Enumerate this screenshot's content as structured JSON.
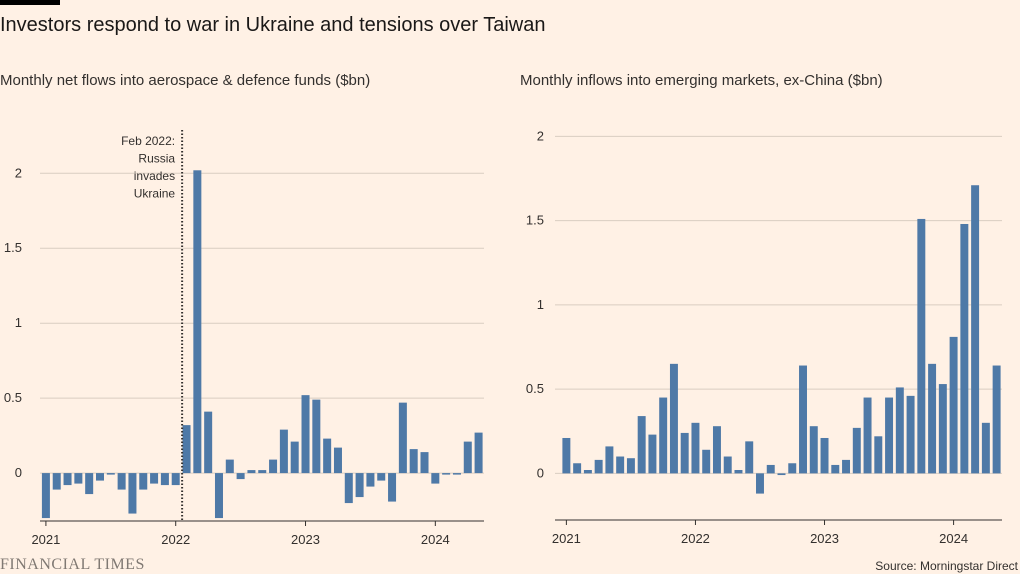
{
  "title": "Investors respond to war in Ukraine and tensions over Taiwan",
  "colors": {
    "bar": "#4e79a7",
    "grid": "#d9cdc1",
    "axis": "#33302e",
    "background": "#fff1e5"
  },
  "chart_data": [
    {
      "type": "bar",
      "title": "Monthly net flows into aerospace & defence funds ($bn)",
      "xlabel": "",
      "ylabel": "",
      "ylim": [
        -0.38,
        2.1
      ],
      "yticks": [
        0,
        0.5,
        1,
        1.5,
        2
      ],
      "ytick_labels": [
        "0",
        "0.5",
        "1",
        "1.5",
        "2"
      ],
      "xticks": [
        {
          "label": "2021",
          "index": 0
        },
        {
          "label": "2022",
          "index": 12
        },
        {
          "label": "2023",
          "index": 24
        },
        {
          "label": "2024",
          "index": 36
        }
      ],
      "annotation": {
        "lines": [
          "Feb 2022:",
          "Russia",
          "invades",
          "Ukraine"
        ],
        "at_index": 13
      },
      "values": [
        -0.3,
        -0.11,
        -0.08,
        -0.07,
        -0.14,
        -0.05,
        -0.01,
        -0.11,
        -0.27,
        -0.11,
        -0.07,
        -0.08,
        -0.08,
        0.32,
        2.02,
        0.41,
        -0.3,
        0.09,
        -0.04,
        0.02,
        0.02,
        0.09,
        0.29,
        0.21,
        0.52,
        0.49,
        0.23,
        0.17,
        -0.2,
        -0.16,
        -0.09,
        -0.05,
        -0.19,
        0.47,
        0.16,
        0.14,
        -0.07,
        -0.01,
        -0.01,
        0.21,
        0.27
      ]
    },
    {
      "type": "bar",
      "title": "Monthly inflows into emerging markets, ex-China ($bn)",
      "xlabel": "",
      "ylabel": "",
      "ylim": [
        -0.3,
        2.02
      ],
      "yticks": [
        0,
        0.5,
        1,
        1.5,
        2
      ],
      "ytick_labels": [
        "0",
        "0.5",
        "1",
        "1.5",
        "2"
      ],
      "xticks": [
        {
          "label": "2021",
          "index": 0
        },
        {
          "label": "2022",
          "index": 12
        },
        {
          "label": "2023",
          "index": 24
        },
        {
          "label": "2024",
          "index": 36
        }
      ],
      "values": [
        0.21,
        0.06,
        0.02,
        0.08,
        0.16,
        0.1,
        0.09,
        0.34,
        0.23,
        0.45,
        0.65,
        0.24,
        0.3,
        0.14,
        0.28,
        0.1,
        0.02,
        0.19,
        -0.12,
        0.05,
        -0.01,
        0.06,
        0.64,
        0.28,
        0.21,
        0.05,
        0.08,
        0.27,
        0.45,
        0.22,
        0.45,
        0.51,
        0.46,
        1.51,
        0.65,
        0.53,
        0.81,
        1.48,
        1.71,
        0.3,
        0.64
      ]
    }
  ],
  "footer": {
    "logo": "FINANCIAL TIMES",
    "source": "Source: Morningstar Direct"
  }
}
